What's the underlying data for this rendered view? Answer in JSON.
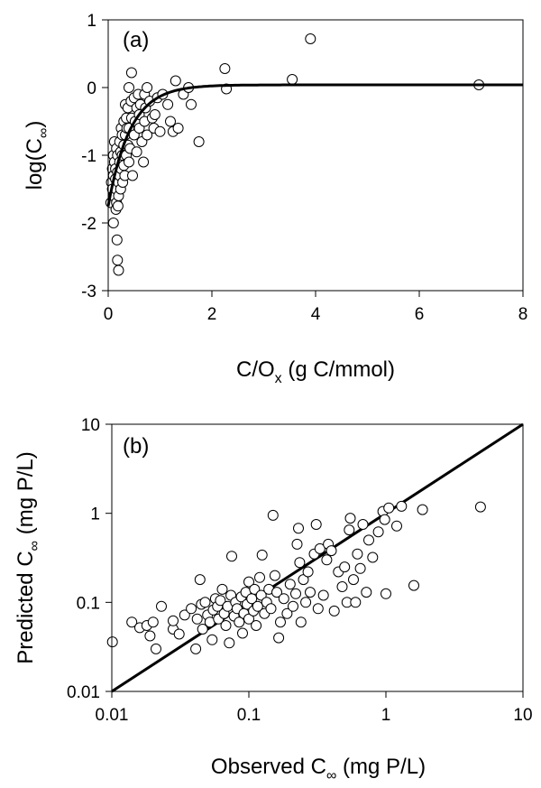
{
  "chart_data": [
    {
      "type": "scatter",
      "panel_label": "(a)",
      "xlabel": {
        "base": "C/O",
        "sub": "x",
        "rest": " (g C/mmol)"
      },
      "ylabel": {
        "base": "log(C",
        "sub": "∞",
        "rest": ")"
      },
      "xlim": [
        0,
        8
      ],
      "ylim": [
        -3,
        1
      ],
      "x_ticks": [
        0,
        2,
        4,
        6,
        8
      ],
      "y_ticks": [
        -3,
        -2,
        -1,
        0,
        1
      ],
      "x_tick_labels": [
        "0",
        "2",
        "4",
        "6",
        "8"
      ],
      "y_tick_labels": [
        "-3",
        "-2",
        "-1",
        "0",
        "1"
      ],
      "grid": false,
      "legend": "none",
      "fit_curve": {
        "type": "exponential_rise",
        "y0": -1.75,
        "y_max": 0.04,
        "rate": 2.35
      },
      "points": [
        [
          0.05,
          -1.7
        ],
        [
          0.06,
          -1.4
        ],
        [
          0.08,
          -1.2
        ],
        [
          0.08,
          -1.5
        ],
        [
          0.1,
          -1.0
        ],
        [
          0.1,
          -1.3
        ],
        [
          0.1,
          -1.6
        ],
        [
          0.1,
          -2.0
        ],
        [
          0.12,
          -0.8
        ],
        [
          0.12,
          -1.1
        ],
        [
          0.14,
          -1.2
        ],
        [
          0.14,
          -1.35
        ],
        [
          0.15,
          -1.5
        ],
        [
          0.15,
          -1.8
        ],
        [
          0.16,
          -0.9
        ],
        [
          0.16,
          -1.7
        ],
        [
          0.17,
          -2.25
        ],
        [
          0.18,
          -1.0
        ],
        [
          0.18,
          -1.25
        ],
        [
          0.18,
          -2.55
        ],
        [
          0.19,
          -1.75
        ],
        [
          0.2,
          -1.4
        ],
        [
          0.2,
          -1.6
        ],
        [
          0.2,
          -2.7
        ],
        [
          0.22,
          -0.8
        ],
        [
          0.22,
          -1.1
        ],
        [
          0.22,
          -1.3
        ],
        [
          0.24,
          -0.95
        ],
        [
          0.24,
          -1.5
        ],
        [
          0.25,
          -0.6
        ],
        [
          0.25,
          -1.2
        ],
        [
          0.27,
          -0.7
        ],
        [
          0.27,
          -1.0
        ],
        [
          0.28,
          -1.4
        ],
        [
          0.3,
          -0.5
        ],
        [
          0.3,
          -0.85
        ],
        [
          0.3,
          -1.15
        ],
        [
          0.32,
          -1.3
        ],
        [
          0.33,
          -0.25
        ],
        [
          0.33,
          -0.7
        ],
        [
          0.35,
          -0.45
        ],
        [
          0.35,
          -1.0
        ],
        [
          0.36,
          -0.6
        ],
        [
          0.38,
          -0.3
        ],
        [
          0.38,
          -0.85
        ],
        [
          0.4,
          -0.0
        ],
        [
          0.4,
          -0.6
        ],
        [
          0.4,
          -1.1
        ],
        [
          0.42,
          -0.9
        ],
        [
          0.44,
          -0.2
        ],
        [
          0.45,
          0.22
        ],
        [
          0.45,
          -0.45
        ],
        [
          0.47,
          -1.3
        ],
        [
          0.5,
          -0.15
        ],
        [
          0.5,
          -0.7
        ],
        [
          0.52,
          -0.5
        ],
        [
          0.55,
          -0.95
        ],
        [
          0.55,
          -0.3
        ],
        [
          0.58,
          -0.1
        ],
        [
          0.6,
          -0.6
        ],
        [
          0.6,
          -0.4
        ],
        [
          0.62,
          -0.25
        ],
        [
          0.65,
          -0.8
        ],
        [
          0.68,
          -1.1
        ],
        [
          0.7,
          -0.1
        ],
        [
          0.7,
          -0.5
        ],
        [
          0.72,
          -0.3
        ],
        [
          0.75,
          -0.0
        ],
        [
          0.75,
          -0.7
        ],
        [
          0.8,
          -0.2
        ],
        [
          0.85,
          -0.45
        ],
        [
          0.88,
          -0.6
        ],
        [
          0.9,
          -0.4
        ],
        [
          0.95,
          -0.15
        ],
        [
          1.0,
          -0.65
        ],
        [
          1.05,
          -0.1
        ],
        [
          1.15,
          -0.25
        ],
        [
          1.2,
          -0.5
        ],
        [
          1.25,
          -0.65
        ],
        [
          1.3,
          0.1
        ],
        [
          1.35,
          -0.6
        ],
        [
          1.45,
          -0.1
        ],
        [
          1.55,
          0.0
        ],
        [
          1.6,
          -0.25
        ],
        [
          1.75,
          -0.8
        ],
        [
          2.25,
          0.28
        ],
        [
          2.28,
          -0.02
        ],
        [
          3.55,
          0.12
        ],
        [
          3.9,
          0.72
        ],
        [
          7.15,
          0.04
        ]
      ]
    },
    {
      "type": "scatter",
      "panel_label": "(b)",
      "xlabel": {
        "base": "Observed C",
        "sub": "∞",
        "rest": " (mg P/L)"
      },
      "ylabel": {
        "base": "Predicted C",
        "sub": "∞",
        "rest": " (mg P/L)"
      },
      "x_scale": "log",
      "y_scale": "log",
      "xlim": [
        0.01,
        10
      ],
      "ylim": [
        0.01,
        10
      ],
      "x_ticks": [
        0.01,
        0.1,
        1,
        10
      ],
      "y_ticks": [
        0.01,
        0.1,
        1,
        10
      ],
      "x_tick_labels": [
        "0.01",
        "0.1",
        "1",
        "10"
      ],
      "y_tick_labels": [
        "0.01",
        "0.1",
        "1",
        "10"
      ],
      "grid": false,
      "legend": "none",
      "line": {
        "type": "1:1",
        "from": [
          0.01,
          0.01
        ],
        "to": [
          10,
          10
        ]
      },
      "points": [
        [
          0.0101,
          0.036
        ],
        [
          0.014,
          0.06
        ],
        [
          0.016,
          0.052
        ],
        [
          0.018,
          0.055
        ],
        [
          0.019,
          0.042
        ],
        [
          0.02,
          0.06
        ],
        [
          0.021,
          0.03
        ],
        [
          0.023,
          0.09
        ],
        [
          0.028,
          0.05
        ],
        [
          0.028,
          0.062
        ],
        [
          0.031,
          0.044
        ],
        [
          0.034,
          0.072
        ],
        [
          0.038,
          0.085
        ],
        [
          0.041,
          0.03
        ],
        [
          0.042,
          0.065
        ],
        [
          0.044,
          0.18
        ],
        [
          0.045,
          0.095
        ],
        [
          0.046,
          0.05
        ],
        [
          0.048,
          0.1
        ],
        [
          0.05,
          0.072
        ],
        [
          0.052,
          0.06
        ],
        [
          0.054,
          0.038
        ],
        [
          0.055,
          0.082
        ],
        [
          0.057,
          0.11
        ],
        [
          0.059,
          0.09
        ],
        [
          0.06,
          0.065
        ],
        [
          0.062,
          0.105
        ],
        [
          0.064,
          0.14
        ],
        [
          0.066,
          0.075
        ],
        [
          0.068,
          0.055
        ],
        [
          0.07,
          0.09
        ],
        [
          0.072,
          0.035
        ],
        [
          0.074,
          0.12
        ],
        [
          0.075,
          0.33
        ],
        [
          0.078,
          0.07
        ],
        [
          0.08,
          0.1
        ],
        [
          0.082,
          0.085
        ],
        [
          0.085,
          0.06
        ],
        [
          0.088,
          0.115
        ],
        [
          0.09,
          0.045
        ],
        [
          0.092,
          0.075
        ],
        [
          0.095,
          0.13
        ],
        [
          0.097,
          0.095
        ],
        [
          0.1,
          0.17
        ],
        [
          0.1,
          0.065
        ],
        [
          0.105,
          0.11
        ],
        [
          0.108,
          0.08
        ],
        [
          0.11,
          0.14
        ],
        [
          0.113,
          0.055
        ],
        [
          0.116,
          0.09
        ],
        [
          0.12,
          0.19
        ],
        [
          0.123,
          0.12
        ],
        [
          0.125,
          0.34
        ],
        [
          0.13,
          0.075
        ],
        [
          0.135,
          0.1
        ],
        [
          0.14,
          0.14
        ],
        [
          0.145,
          0.085
        ],
        [
          0.15,
          0.95
        ],
        [
          0.155,
          0.2
        ],
        [
          0.16,
          0.13
        ],
        [
          0.165,
          0.04
        ],
        [
          0.17,
          0.06
        ],
        [
          0.18,
          0.11
        ],
        [
          0.19,
          0.075
        ],
        [
          0.2,
          0.16
        ],
        [
          0.21,
          0.09
        ],
        [
          0.22,
          0.125
        ],
        [
          0.225,
          0.45
        ],
        [
          0.23,
          0.68
        ],
        [
          0.235,
          0.28
        ],
        [
          0.24,
          0.06
        ],
        [
          0.25,
          0.18
        ],
        [
          0.26,
          0.1
        ],
        [
          0.27,
          0.22
        ],
        [
          0.28,
          0.13
        ],
        [
          0.3,
          0.35
        ],
        [
          0.31,
          0.75
        ],
        [
          0.32,
          0.085
        ],
        [
          0.33,
          0.4
        ],
        [
          0.35,
          0.12
        ],
        [
          0.37,
          0.3
        ],
        [
          0.38,
          0.45
        ],
        [
          0.4,
          0.38
        ],
        [
          0.42,
          0.08
        ],
        [
          0.45,
          0.22
        ],
        [
          0.48,
          0.15
        ],
        [
          0.5,
          0.25
        ],
        [
          0.52,
          0.1
        ],
        [
          0.54,
          0.65
        ],
        [
          0.55,
          0.88
        ],
        [
          0.58,
          0.18
        ],
        [
          0.6,
          0.1
        ],
        [
          0.62,
          0.35
        ],
        [
          0.65,
          0.24
        ],
        [
          0.68,
          0.75
        ],
        [
          0.72,
          0.13
        ],
        [
          0.75,
          0.5
        ],
        [
          0.8,
          0.32
        ],
        [
          0.88,
          0.62
        ],
        [
          0.95,
          1.05
        ],
        [
          0.98,
          0.85
        ],
        [
          1.0,
          0.125
        ],
        [
          1.05,
          1.15
        ],
        [
          1.2,
          0.72
        ],
        [
          1.3,
          1.2
        ],
        [
          1.6,
          0.155
        ],
        [
          1.85,
          1.1
        ],
        [
          4.9,
          1.18
        ]
      ]
    }
  ]
}
